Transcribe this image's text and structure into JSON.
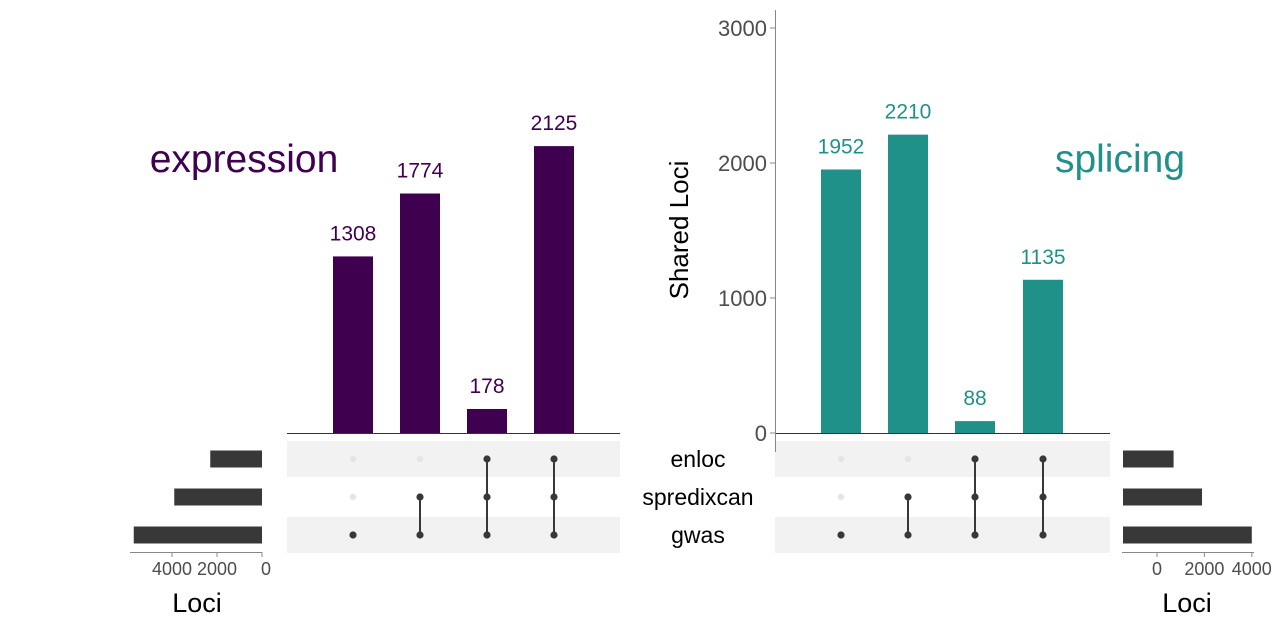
{
  "chart_data": [
    {
      "type": "bar",
      "panel": "intersections",
      "title": "expression",
      "color": "#3f0050",
      "sets": [
        "enloc",
        "spredixcan",
        "gwas"
      ],
      "intersections": [
        {
          "members": [
            "gwas"
          ],
          "value": 1308
        },
        {
          "members": [
            "spredixcan",
            "gwas"
          ],
          "value": 1774
        },
        {
          "members": [
            "enloc",
            "spredixcan",
            "gwas"
          ],
          "value": 178
        },
        {
          "members": [
            "enloc",
            "spredixcan",
            "gwas"
          ],
          "value": 2125
        }
      ],
      "ylim": [
        0,
        3000
      ],
      "yticks": [
        0,
        1000,
        2000,
        3000
      ],
      "y_axis_shown": false
    },
    {
      "type": "bar",
      "panel": "intersections",
      "title": "splicing",
      "color": "#209189",
      "sets": [
        "enloc",
        "spredixcan",
        "gwas"
      ],
      "intersections": [
        {
          "members": [
            "gwas"
          ],
          "value": 1952
        },
        {
          "members": [
            "spredixcan",
            "gwas"
          ],
          "value": 2210
        },
        {
          "members": [
            "enloc",
            "spredixcan",
            "gwas"
          ],
          "value": 88
        },
        {
          "members": [
            "enloc",
            "spredixcan",
            "gwas"
          ],
          "value": 1135
        }
      ],
      "ylim": [
        0,
        3000
      ],
      "yticks": [
        0,
        1000,
        2000,
        3000
      ],
      "ylabel": "Shared Loci",
      "y_axis_shown": true
    },
    {
      "type": "bar",
      "panel": "set-size",
      "orientation": "horizontal-reversed",
      "sets": [
        "enloc",
        "spredixcan",
        "gwas"
      ],
      "values": [
        2300,
        3900,
        5700
      ],
      "xticks": [
        4000,
        2000,
        0
      ],
      "xlim": [
        0,
        5800
      ],
      "xlabel": "Loci",
      "color": "#383838"
    },
    {
      "type": "bar",
      "panel": "set-size",
      "orientation": "horizontal",
      "sets": [
        "enloc",
        "spredixcan",
        "gwas"
      ],
      "values": [
        700,
        1900,
        4000
      ],
      "xticks": [
        0,
        2000,
        4000
      ],
      "xlim": [
        -1400,
        4000
      ],
      "xlabel": "Loci",
      "color": "#383838"
    }
  ],
  "set_labels": [
    "enloc",
    "spredixcan",
    "gwas"
  ],
  "colors": {
    "matrix_band": "#f2f2f2",
    "dot_active": "#383838",
    "dot_inactive": "#e5e5e5",
    "axis": "#888888",
    "tick_text": "#4d4d4d"
  }
}
